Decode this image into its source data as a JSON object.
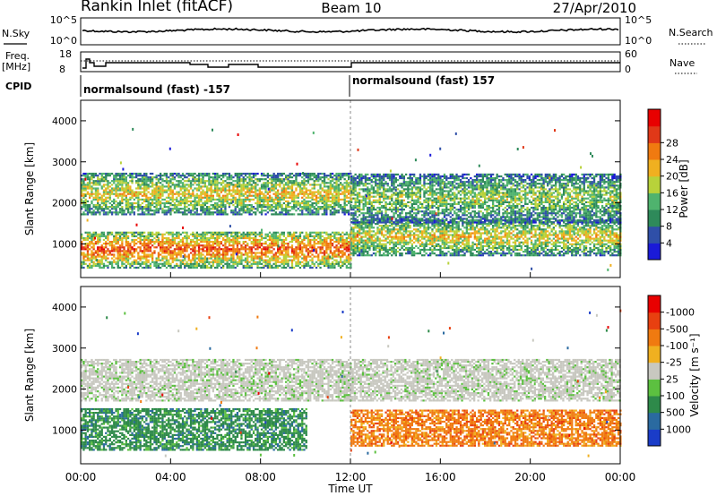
{
  "header": {
    "site": "Rankin Inlet (fitACF)",
    "beam": "Beam 10",
    "date": "27/Apr/2010"
  },
  "status_panels": {
    "nsky_label": "N.Sky",
    "nsky_ticks": [
      "10^5",
      "10^0"
    ],
    "nsearch_label": "N.Search",
    "nsearch_ticks": [
      "10^5",
      "10^0"
    ],
    "freq_label": "Freq.",
    "freq_unit": "[MHz]",
    "freq_ticks": [
      "18",
      "8"
    ],
    "nave_label": "Nave",
    "nave_ticks": [
      "60",
      "0"
    ],
    "cpid_label": "CPID",
    "cpid_segments": [
      "normalsound (fast) -157",
      "normalsound (fast) 157"
    ]
  },
  "chart_data": [
    {
      "type": "heatmap",
      "panel": "power",
      "ylabel": "Slant Range [km]",
      "xlabel": "Time UT",
      "x_ticks": [
        "00:00",
        "04:00",
        "08:00",
        "12:00",
        "16:00",
        "20:00",
        "00:00"
      ],
      "y_ticks": [
        1000,
        2000,
        3000,
        4000
      ],
      "x_range_hours": [
        0,
        24
      ],
      "y_range_km": [
        180,
        4500
      ],
      "colorbar_label": "Power [dB]",
      "colorbar_ticks": [
        4,
        8,
        12,
        16,
        20,
        24,
        28
      ],
      "colorbar_colors": [
        "#1a1ad8",
        "#2f4fa8",
        "#2e8a5a",
        "#4fb36e",
        "#b8d23a",
        "#f0b020",
        "#f07a10",
        "#e03818",
        "#e80000"
      ],
      "bands": [
        {
          "t0": 0.0,
          "t1": 12.0,
          "r0": 400,
          "r1": 1300,
          "level": 0.85
        },
        {
          "t0": 0.0,
          "t1": 12.0,
          "r0": 1700,
          "r1": 2700,
          "level": 0.6
        },
        {
          "t0": 12.0,
          "t1": 24.0,
          "r0": 700,
          "r1": 1600,
          "level": 0.6
        },
        {
          "t0": 12.0,
          "t1": 24.0,
          "r0": 1500,
          "r1": 2700,
          "level": 0.45
        }
      ]
    },
    {
      "type": "heatmap",
      "panel": "velocity",
      "ylabel": "Slant Range [km]",
      "xlabel": "Time UT",
      "x_ticks": [
        "00:00",
        "04:00",
        "08:00",
        "12:00",
        "16:00",
        "20:00",
        "00:00"
      ],
      "y_ticks": [
        1000,
        2000,
        3000,
        4000
      ],
      "x_range_hours": [
        0,
        24
      ],
      "y_range_km": [
        180,
        4500
      ],
      "colorbar_label": "Velocity [m s⁻¹]",
      "colorbar_ticks": [
        "1000",
        "500",
        "100",
        "25",
        "-25",
        "-100",
        "-500",
        "-1000"
      ],
      "colorbar_colors": [
        "#1a3cc8",
        "#2a6aa0",
        "#2e8a4a",
        "#5cc040",
        "#c8c8c0",
        "#f0b020",
        "#f07a10",
        "#e84010",
        "#e80000"
      ],
      "bands": [
        {
          "t0": 0.0,
          "t1": 10.0,
          "r0": 500,
          "r1": 1500,
          "level": "positive"
        },
        {
          "t0": 0.0,
          "t1": 24.0,
          "r0": 1700,
          "r1": 2700,
          "level": "near-zero"
        },
        {
          "t0": 12.0,
          "t1": 24.0,
          "r0": 600,
          "r1": 1500,
          "level": "negative"
        }
      ]
    }
  ]
}
